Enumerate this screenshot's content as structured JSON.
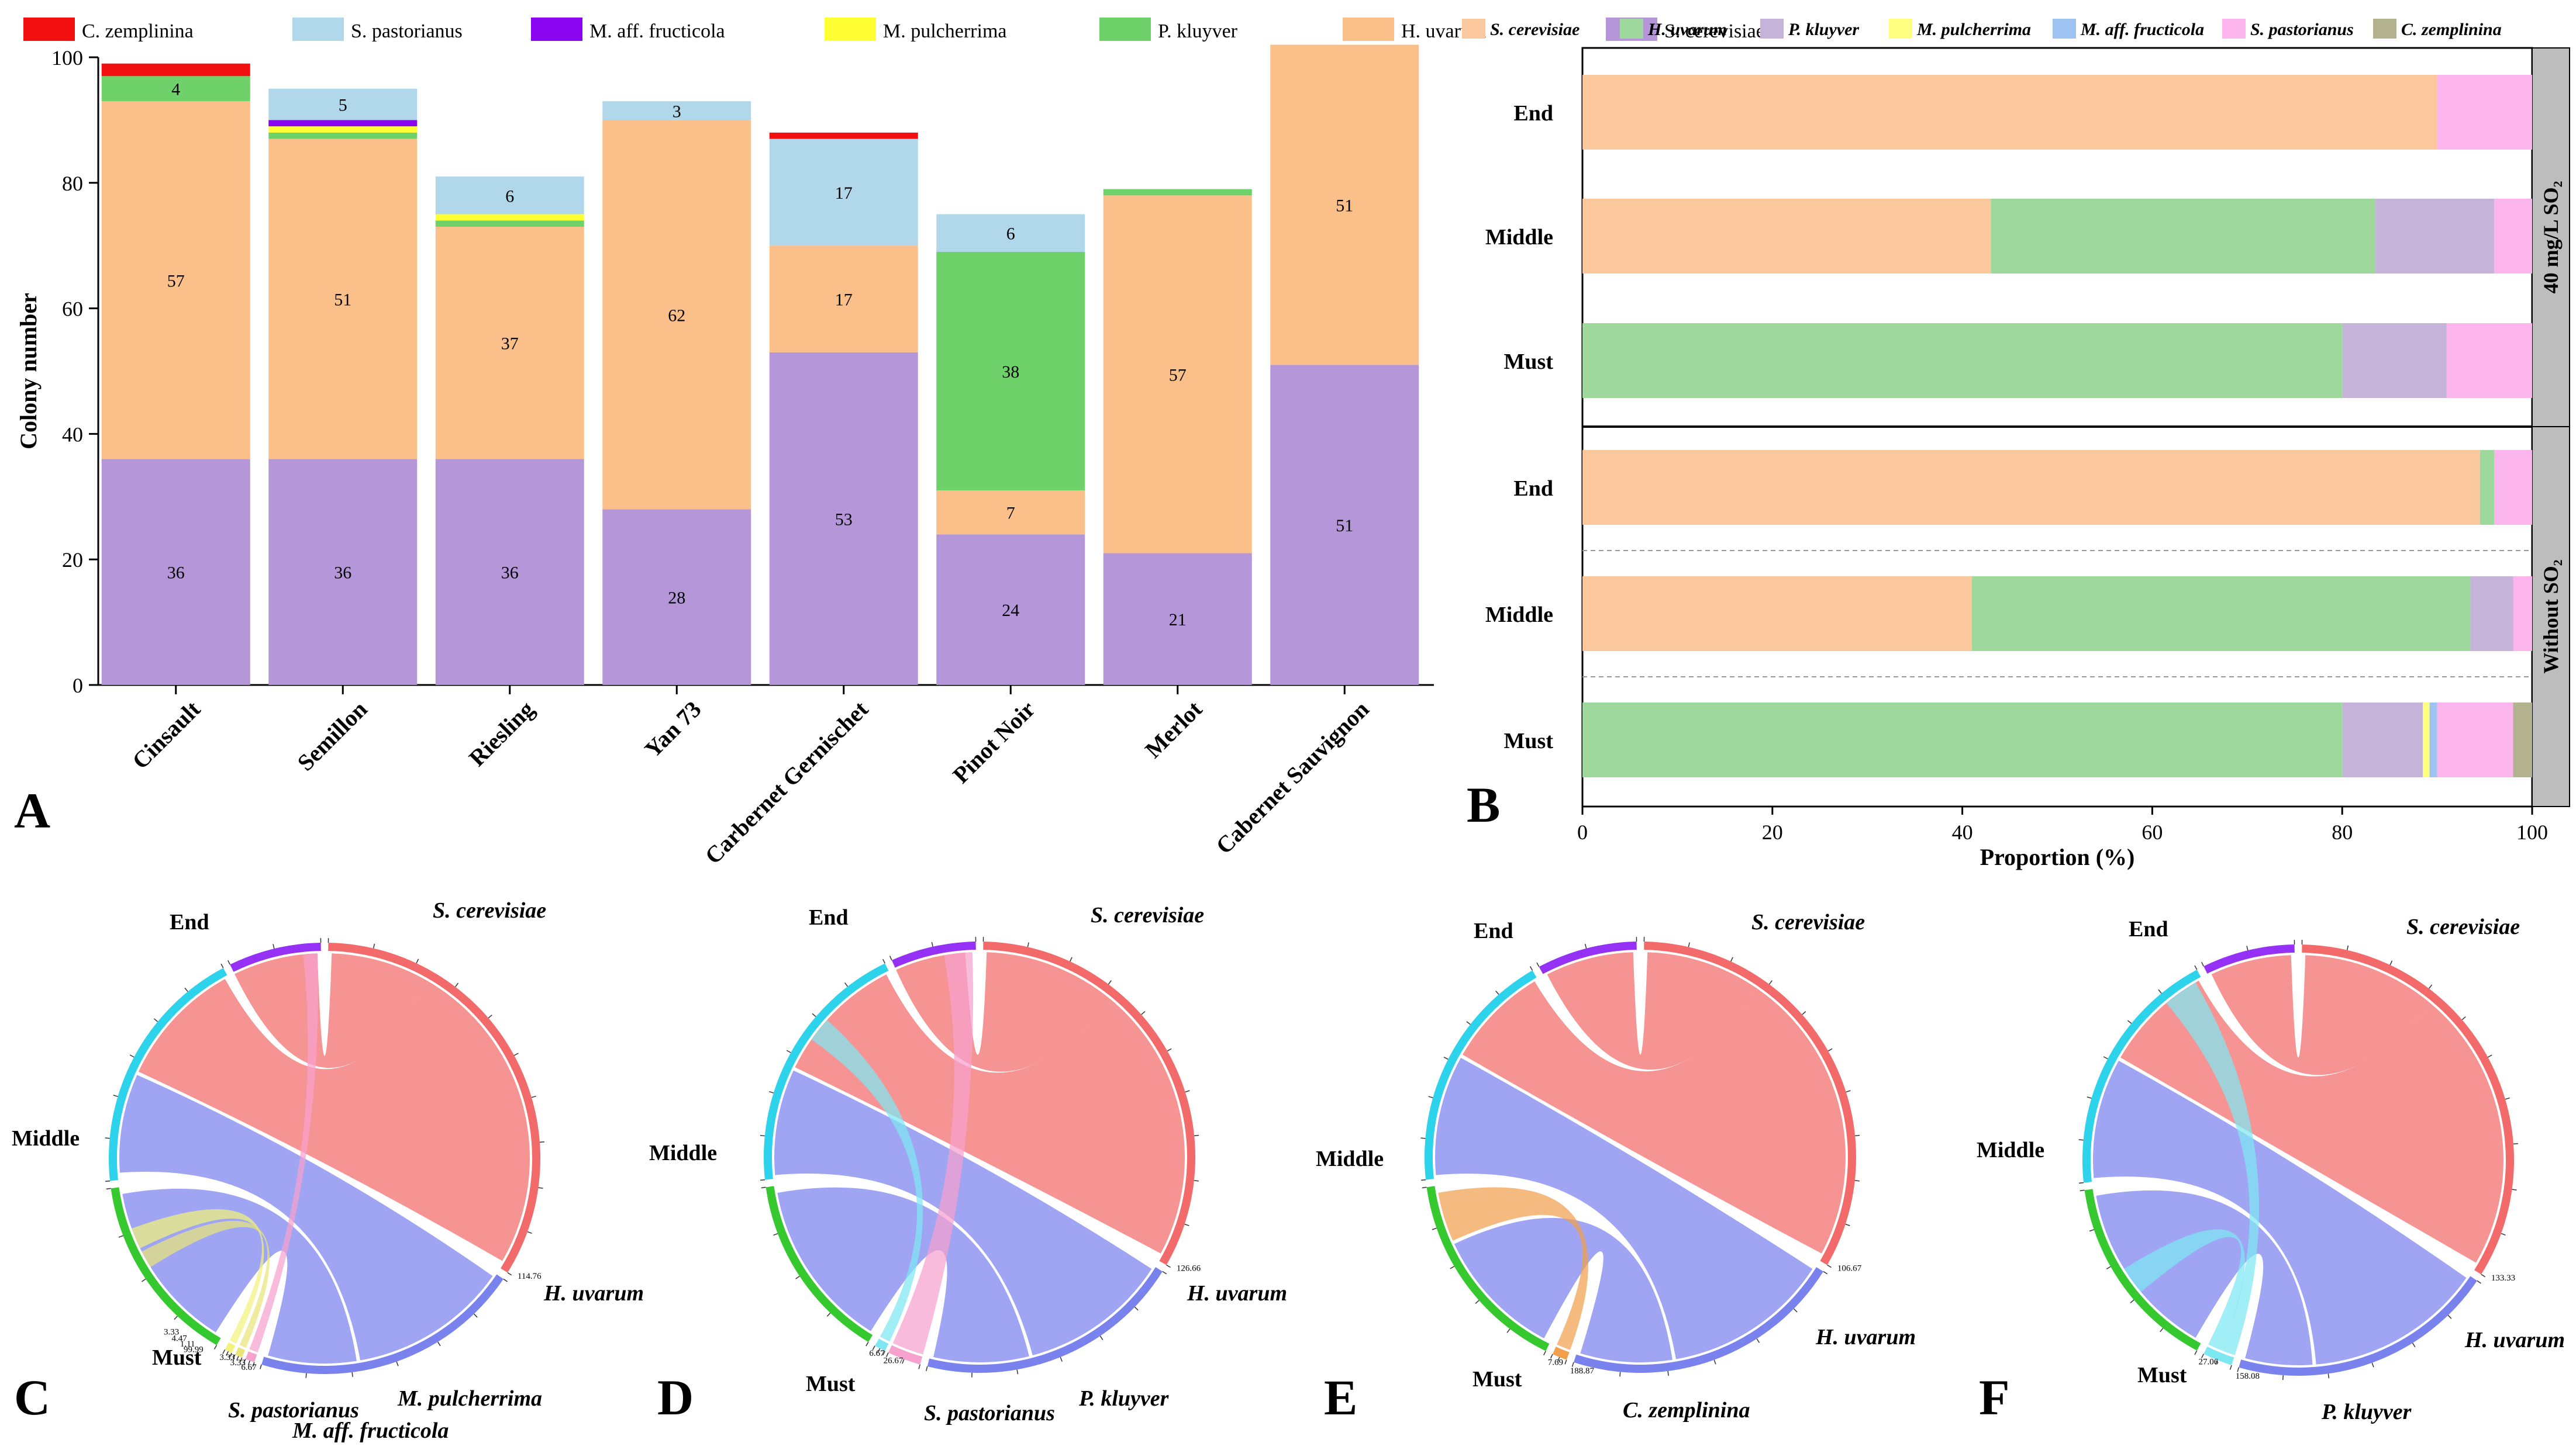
{
  "panel_labels": [
    "A",
    "B",
    "C",
    "D",
    "E",
    "F"
  ],
  "chart_data": [
    {
      "panel": "A",
      "type": "bar",
      "stacked": true,
      "ylabel": "Colony number",
      "ylim": [
        0,
        100
      ],
      "yticks": [
        0,
        20,
        40,
        60,
        80,
        100
      ],
      "categories": [
        "Cinsault",
        "Semillon",
        "Riesling",
        "Yan 73",
        "Carbernet Gernischet",
        "Pinot Noir",
        "Merlot",
        "Cabernet Sauvignon"
      ],
      "legend": [
        "C. zemplinina",
        "S. pastorianus",
        "M. aff. fructicola",
        "M. pulcherrima",
        "P. kluyver",
        "H. uvarum",
        "S. cerevisiae"
      ],
      "series": [
        {
          "name": "S. cerevisiae",
          "color": "#b597d9",
          "values": [
            36,
            36,
            36,
            28,
            53,
            24,
            21,
            51
          ],
          "labels": [
            "36",
            "36",
            "36",
            "28",
            "53",
            "24",
            "21",
            "51"
          ]
        },
        {
          "name": "H. uvarum",
          "color": "#fbbf8a",
          "values": [
            57,
            51,
            37,
            62,
            17,
            7,
            57,
            51
          ],
          "labels": [
            "57",
            "51",
            "37",
            "62",
            "17",
            "7",
            "57",
            "51"
          ]
        },
        {
          "name": "P. kluyver",
          "color": "#6fd169",
          "values": [
            4,
            1,
            1,
            0,
            0,
            38,
            1,
            0
          ],
          "labels": [
            "4",
            "",
            "",
            "",
            "",
            "38",
            "",
            ""
          ]
        },
        {
          "name": "M. pulcherrima",
          "color": "#ffff33",
          "values": [
            0,
            1,
            1,
            0,
            0,
            0,
            0,
            0
          ],
          "labels": [
            "",
            "",
            "",
            "",
            "",
            "",
            "",
            ""
          ]
        },
        {
          "name": "M. aff. fructicola",
          "color": "#8a05f0",
          "values": [
            0,
            1,
            0,
            0,
            0,
            0,
            0,
            0
          ],
          "labels": [
            "",
            "",
            "",
            "",
            "",
            "",
            "",
            ""
          ]
        },
        {
          "name": "S. pastorianus",
          "color": "#b0d8ea",
          "values": [
            0,
            5,
            6,
            3,
            17,
            6,
            0,
            0
          ],
          "labels": [
            "",
            "5",
            "6",
            "3",
            "17",
            "6",
            "",
            ""
          ]
        },
        {
          "name": "C. zemplinina",
          "color": "#f20f0f",
          "values": [
            2,
            0,
            0,
            0,
            1,
            0,
            0,
            0
          ],
          "labels": [
            "",
            "",
            "",
            "",
            "",
            "",
            "",
            ""
          ]
        }
      ]
    },
    {
      "panel": "B",
      "type": "bar",
      "orientation": "horizontal",
      "stacked": true,
      "xlabel": "Proportion (%)",
      "xlim": [
        0,
        100
      ],
      "xticks": [
        0,
        20,
        40,
        60,
        80,
        100
      ],
      "legend": [
        "S. cerevisiae",
        "H. uvarum",
        "P. kluyver",
        "M. pulcherrima",
        "M. aff. fructicola",
        "S. pastorianus",
        "C. zemplinina"
      ],
      "colors": [
        "#fbc89e",
        "#9ed89c",
        "#c6b3d9",
        "#ffff80",
        "#9ec3f0",
        "#fbb4ec",
        "#b2b28e"
      ],
      "groups": [
        {
          "name": "40 mg/L SO₂",
          "rows": [
            {
              "label": "End",
              "values": [
                90,
                0,
                0,
                0,
                0,
                10,
                0
              ]
            },
            {
              "label": "Middle",
              "values": [
                43,
                40.5,
                12.5,
                0,
                0,
                4,
                0
              ]
            },
            {
              "label": "Must",
              "values": [
                0,
                80,
                11,
                0,
                0,
                9,
                0
              ]
            }
          ]
        },
        {
          "name": "Without SO₂",
          "rows": [
            {
              "label": "End",
              "values": [
                94.5,
                1.5,
                0,
                0,
                0,
                4,
                0
              ]
            },
            {
              "label": "Middle",
              "values": [
                41,
                52.5,
                4.5,
                0,
                0,
                2,
                0
              ]
            },
            {
              "label": "Must",
              "values": [
                0,
                80,
                8.5,
                0.7,
                0.8,
                8,
                2
              ]
            }
          ]
        }
      ]
    }
  ],
  "chords": [
    {
      "panel": "C",
      "stages": [
        "End",
        "Middle",
        "Must"
      ],
      "species": [
        {
          "label": "S. cerevisiae",
          "max": "114.76"
        },
        {
          "label": "H. uvarum",
          "max": ""
        },
        {
          "label": "S. pastorianus",
          "max": "6.67"
        },
        {
          "label": "M. aff. fructicola",
          "max": "3.33"
        },
        {
          "label": "M. pulcherrima",
          "max": "3.33"
        }
      ],
      "extra_ticks": [
        "99.99",
        "1.11",
        "4.47",
        "3.33"
      ]
    },
    {
      "panel": "D",
      "stages": [
        "End",
        "Middle",
        "Must"
      ],
      "species": [
        {
          "label": "S. cerevisiae",
          "max": "126.66"
        },
        {
          "label": "H. uvarum",
          "max": ""
        },
        {
          "label": "S. pastorianus",
          "max": "26.67"
        },
        {
          "label": "P. kluyver",
          "max": "6.67"
        }
      ],
      "extra_ticks": []
    },
    {
      "panel": "E",
      "stages": [
        "End",
        "Middle",
        "Must"
      ],
      "species": [
        {
          "label": "S. cerevisiae",
          "max": "106.67"
        },
        {
          "label": "H. uvarum",
          "max": "188.87"
        },
        {
          "label": "C. zemplinina",
          "max": "7.69"
        }
      ],
      "extra_ticks": []
    },
    {
      "panel": "F",
      "stages": [
        "End",
        "Middle",
        "Must"
      ],
      "species": [
        {
          "label": "S. cerevisiae",
          "max": "133.33"
        },
        {
          "label": "H. uvarum",
          "max": "158.08"
        },
        {
          "label": "P. kluyver",
          "max": "27.06"
        }
      ],
      "extra_ticks": []
    }
  ],
  "chord_colors": {
    "End": "#9431f5",
    "Middle": "#2dd2eb",
    "Must": "#35c92f",
    "S. cerevisiae": "#f26a6a",
    "H. uvarum": "#7a82ee",
    "S. pastorianus": "#f7a1ce",
    "M. aff. fructicola": "#e9e47a",
    "M. pulcherrima": "#f2f27c",
    "P. kluyver": "#7ee8f2",
    "C. zemplinina": "#f0a04d"
  }
}
